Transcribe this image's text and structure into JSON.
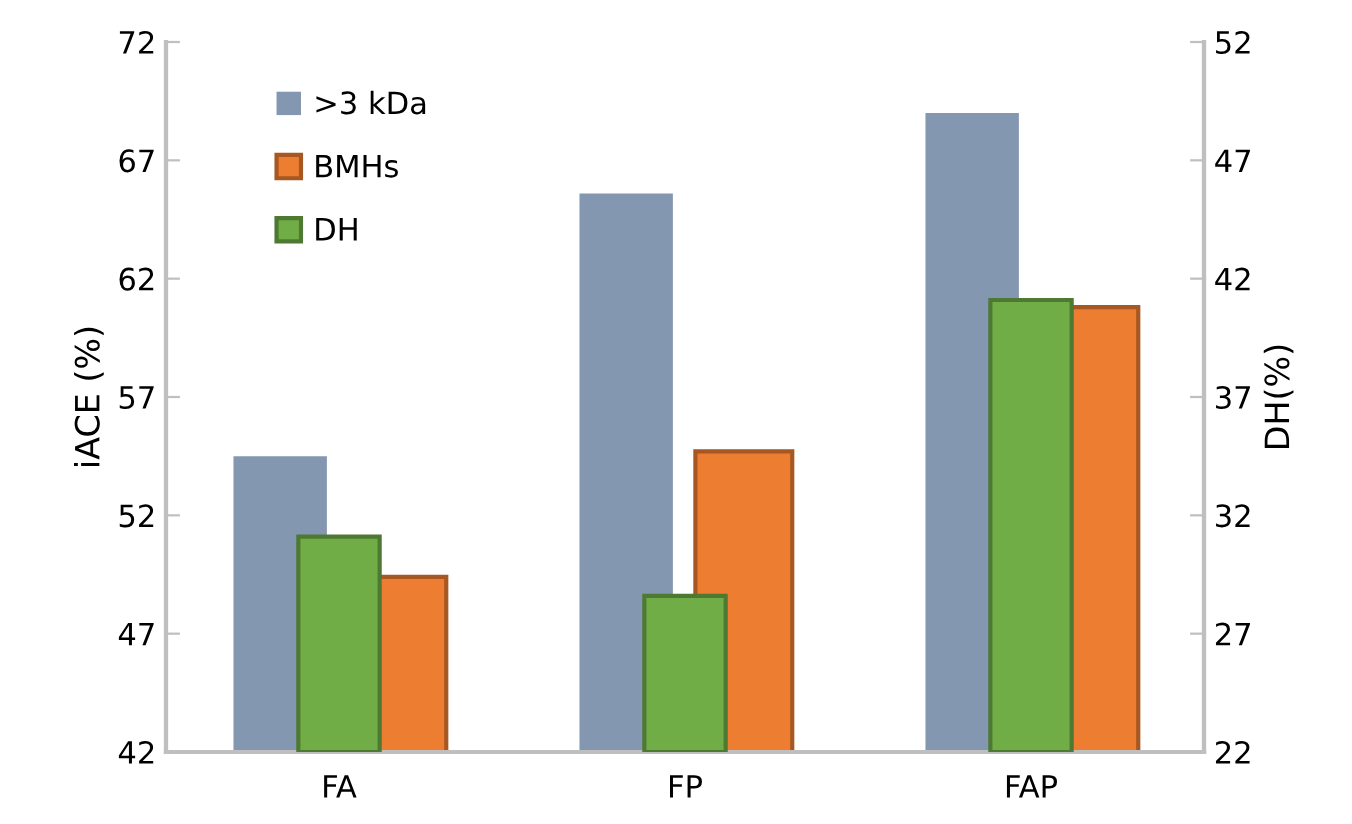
{
  "chart_data": {
    "type": "bar",
    "ylabel": "iACE (%)",
    "y2label": "DH(%)",
    "categories": [
      "FA",
      "FP",
      "FAP"
    ],
    "series": [
      {
        "name": ">3 kDa",
        "color": "#8497b0",
        "values": [
          54.5,
          65.6,
          69.0
        ]
      },
      {
        "name": "BMHs",
        "color": "#ed7d31",
        "values": [
          49.4,
          54.7,
          60.8
        ]
      },
      {
        "name": "DH",
        "color": "#70ad47",
        "axis": "y2",
        "values": [
          31.1,
          28.6,
          41.1
        ]
      }
    ],
    "ylim": [
      42,
      72
    ],
    "yticks": [
      42,
      47,
      52,
      57,
      62,
      67,
      72
    ],
    "y2lim": [
      22,
      52
    ],
    "y2ticks": [
      22,
      27,
      32,
      37,
      42,
      47,
      52
    ],
    "grid": false,
    "legend": "top left"
  }
}
